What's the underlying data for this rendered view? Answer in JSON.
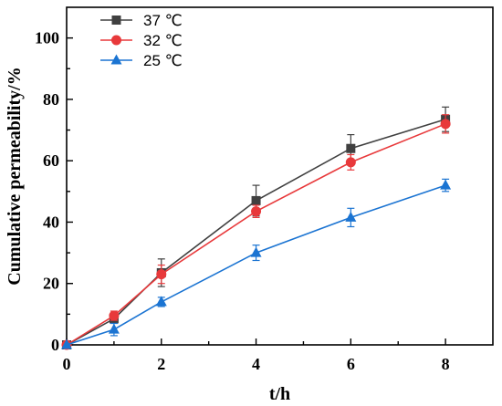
{
  "chart_data": {
    "type": "line",
    "xlabel": "t/h",
    "ylabel": "Cumulative permeability/%",
    "xlim": [
      0,
      9
    ],
    "ylim": [
      0,
      110
    ],
    "x_ticks": [
      0,
      2,
      4,
      6,
      8
    ],
    "y_ticks": [
      0,
      20,
      40,
      60,
      80,
      100
    ],
    "grid": false,
    "legend_position": "top-left",
    "x": [
      0,
      1,
      2,
      4,
      6,
      8
    ],
    "series": [
      {
        "name": "37 ℃",
        "color": "#404040",
        "marker": "square",
        "values": [
          0,
          8.5,
          23.5,
          47,
          64,
          73.5
        ],
        "errors": [
          0,
          1.5,
          4.5,
          5,
          4.5,
          4
        ]
      },
      {
        "name": "32 ℃",
        "color": "#e8393b",
        "marker": "circle",
        "values": [
          0,
          9.5,
          23,
          43.5,
          59.5,
          72
        ],
        "errors": [
          0,
          1.5,
          3,
          2,
          2.5,
          3
        ]
      },
      {
        "name": "25 ℃",
        "color": "#1b74d2",
        "marker": "triangle",
        "values": [
          0,
          5,
          14,
          30,
          41.5,
          52
        ],
        "errors": [
          0,
          2,
          1.5,
          2.5,
          3,
          2
        ]
      }
    ]
  }
}
